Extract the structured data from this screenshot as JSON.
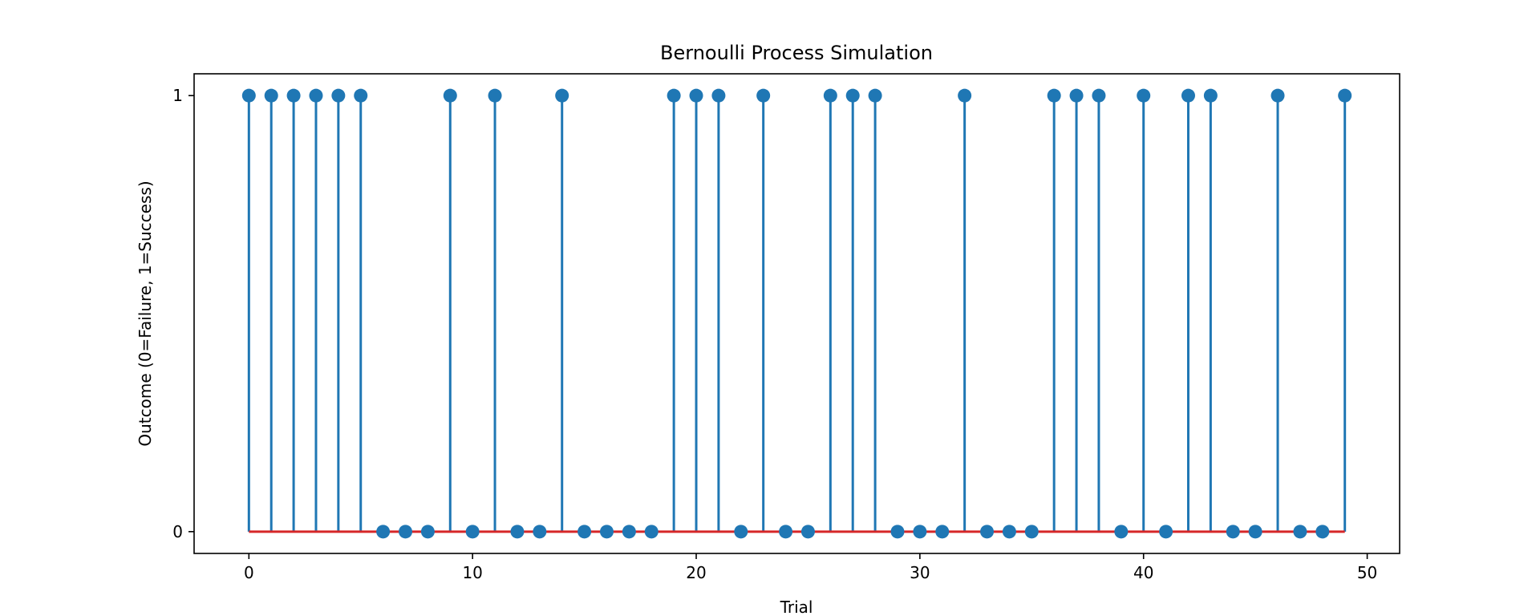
{
  "chart_data": {
    "type": "stem",
    "title": "Bernoulli Process Simulation",
    "xlabel": "Trial",
    "ylabel": "Outcome (0=Failure, 1=Success)",
    "xlim": [
      -2.45,
      51.45
    ],
    "ylim": [
      -0.05,
      1.05
    ],
    "xticks": [
      0,
      10,
      20,
      30,
      40,
      50
    ],
    "yticks": [
      0,
      1
    ],
    "x": [
      0,
      1,
      2,
      3,
      4,
      5,
      6,
      7,
      8,
      9,
      10,
      11,
      12,
      13,
      14,
      15,
      16,
      17,
      18,
      19,
      20,
      21,
      22,
      23,
      24,
      25,
      26,
      27,
      28,
      29,
      30,
      31,
      32,
      33,
      34,
      35,
      36,
      37,
      38,
      39,
      40,
      41,
      42,
      43,
      44,
      45,
      46,
      47,
      48,
      49
    ],
    "y": [
      1,
      1,
      1,
      1,
      1,
      1,
      0,
      0,
      0,
      1,
      0,
      1,
      0,
      0,
      1,
      0,
      0,
      0,
      0,
      1,
      1,
      1,
      0,
      1,
      0,
      0,
      1,
      1,
      1,
      0,
      0,
      0,
      1,
      0,
      0,
      0,
      1,
      1,
      1,
      0,
      1,
      0,
      1,
      1,
      0,
      0,
      1,
      0,
      0,
      1
    ],
    "stem_color": "#1f77b4",
    "baseline_color": "#d62728",
    "grid": false,
    "legend": "none"
  }
}
